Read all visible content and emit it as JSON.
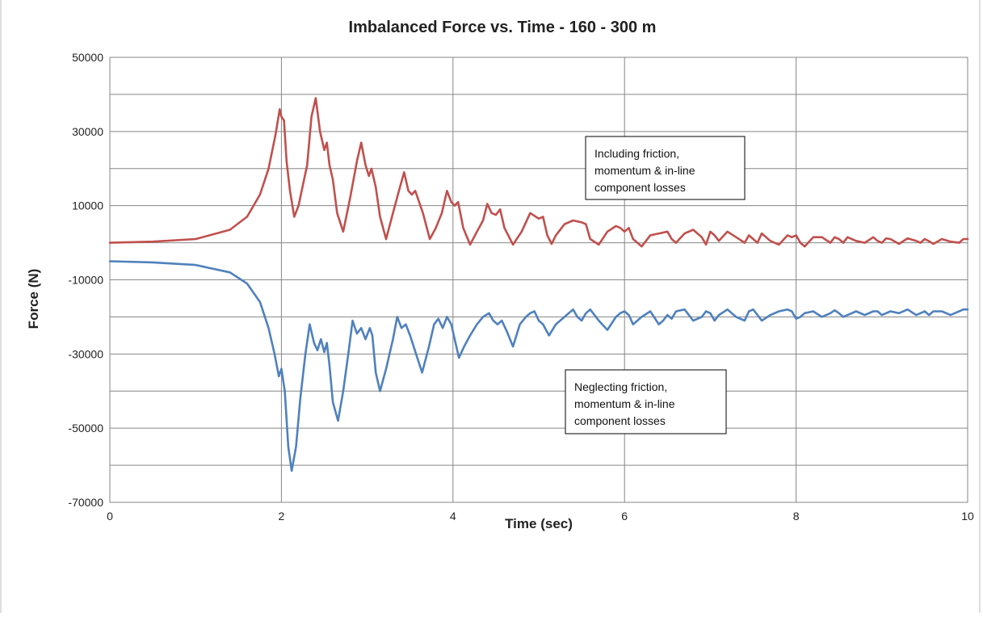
{
  "chart_data": {
    "type": "line",
    "title": "Imbalanced Force vs. Time - 160 - 300 m",
    "xlabel": "Time (sec)",
    "ylabel": "Force (N)",
    "xlim": [
      0,
      10
    ],
    "ylim": [
      -70000,
      50000
    ],
    "x_ticks": [
      "0",
      "2",
      "4",
      "6",
      "8",
      "10"
    ],
    "y_ticks": [
      "50000",
      "30000",
      "10000",
      "-10000",
      "-30000",
      "-50000",
      "-70000"
    ],
    "grid": true,
    "series": [
      {
        "name": "Including friction, momentum & in-line component losses",
        "color": "#c0504d",
        "x": [
          0,
          0.5,
          1.0,
          1.4,
          1.6,
          1.75,
          1.85,
          1.93,
          1.98,
          2.0,
          2.03,
          2.06,
          2.1,
          2.15,
          2.2,
          2.3,
          2.35,
          2.4,
          2.45,
          2.5,
          2.53,
          2.56,
          2.6,
          2.65,
          2.72,
          2.8,
          2.88,
          2.93,
          2.98,
          3.02,
          3.05,
          3.1,
          3.15,
          3.22,
          3.3,
          3.37,
          3.43,
          3.48,
          3.52,
          3.56,
          3.65,
          3.73,
          3.8,
          3.87,
          3.93,
          3.98,
          4.02,
          4.06,
          4.12,
          4.2,
          4.28,
          4.35,
          4.4,
          4.45,
          4.5,
          4.55,
          4.6,
          4.7,
          4.8,
          4.9,
          5.0,
          5.05,
          5.1,
          5.15,
          5.2,
          5.3,
          5.4,
          5.5,
          5.55,
          5.6,
          5.7,
          5.8,
          5.9,
          5.95,
          6.0,
          6.05,
          6.1,
          6.2,
          6.3,
          6.4,
          6.5,
          6.55,
          6.6,
          6.7,
          6.8,
          6.9,
          6.95,
          7.0,
          7.05,
          7.1,
          7.2,
          7.3,
          7.4,
          7.45,
          7.5,
          7.55,
          7.6,
          7.7,
          7.8,
          7.9,
          7.95,
          8.0,
          8.05,
          8.1,
          8.2,
          8.3,
          8.4,
          8.45,
          8.5,
          8.55,
          8.6,
          8.7,
          8.8,
          8.9,
          8.95,
          9.0,
          9.05,
          9.1,
          9.2,
          9.3,
          9.4,
          9.45,
          9.5,
          9.55,
          9.6,
          9.7,
          9.8,
          9.9,
          9.95,
          10.0
        ],
        "y": [
          0,
          300,
          1000,
          3500,
          7000,
          13000,
          20000,
          29000,
          36000,
          34000,
          33000,
          22000,
          14000,
          7000,
          10000,
          21000,
          34000,
          39000,
          30000,
          25000,
          27000,
          21000,
          17000,
          8000,
          3000,
          12000,
          22000,
          27000,
          21000,
          18000,
          20000,
          15000,
          7000,
          1000,
          8000,
          14000,
          19000,
          14000,
          13000,
          14000,
          8000,
          1000,
          4000,
          8000,
          14000,
          11000,
          10000,
          11000,
          4000,
          -500,
          3000,
          6000,
          10500,
          8000,
          7500,
          9000,
          4000,
          -500,
          3000,
          8000,
          6500,
          7000,
          2000,
          -300,
          2000,
          5000,
          6000,
          5500,
          5000,
          1000,
          -500,
          3000,
          4500,
          4000,
          3000,
          4000,
          1000,
          -1000,
          2000,
          2500,
          3000,
          1000,
          0,
          2500,
          3500,
          1500,
          -500,
          3000,
          2000,
          500,
          3000,
          1500,
          0,
          2000,
          1000,
          0,
          2500,
          500,
          -500,
          2000,
          1500,
          2000,
          0,
          -1000,
          1500,
          1500,
          0,
          1500,
          1000,
          0,
          1500,
          500,
          0,
          1500,
          500,
          0,
          1200,
          1000,
          -300,
          1200,
          500,
          0,
          1000,
          400,
          -300,
          1000,
          300,
          0,
          1000,
          1000
        ]
      },
      {
        "name": "Neglecting friction, momentum & in-line component losses",
        "color": "#4f81bd",
        "x": [
          0,
          0.5,
          1.0,
          1.4,
          1.6,
          1.75,
          1.85,
          1.92,
          1.97,
          2.0,
          2.04,
          2.08,
          2.12,
          2.17,
          2.22,
          2.28,
          2.33,
          2.38,
          2.42,
          2.46,
          2.5,
          2.53,
          2.56,
          2.6,
          2.66,
          2.72,
          2.78,
          2.83,
          2.88,
          2.93,
          2.98,
          3.03,
          3.06,
          3.1,
          3.15,
          3.22,
          3.3,
          3.35,
          3.4,
          3.45,
          3.5,
          3.57,
          3.64,
          3.72,
          3.78,
          3.83,
          3.88,
          3.93,
          3.98,
          4.02,
          4.07,
          4.13,
          4.2,
          4.28,
          4.35,
          4.42,
          4.47,
          4.52,
          4.57,
          4.63,
          4.7,
          4.78,
          4.85,
          4.9,
          4.95,
          5.0,
          5.05,
          5.12,
          5.2,
          5.3,
          5.4,
          5.45,
          5.5,
          5.55,
          5.6,
          5.7,
          5.8,
          5.9,
          5.95,
          6.0,
          6.05,
          6.1,
          6.2,
          6.3,
          6.4,
          6.45,
          6.5,
          6.55,
          6.6,
          6.7,
          6.8,
          6.9,
          6.95,
          7.0,
          7.05,
          7.1,
          7.2,
          7.3,
          7.4,
          7.45,
          7.5,
          7.55,
          7.6,
          7.7,
          7.8,
          7.9,
          7.95,
          8.0,
          8.05,
          8.1,
          8.2,
          8.3,
          8.4,
          8.45,
          8.5,
          8.55,
          8.6,
          8.7,
          8.8,
          8.9,
          8.95,
          9.0,
          9.05,
          9.1,
          9.2,
          9.3,
          9.4,
          9.45,
          9.5,
          9.55,
          9.6,
          9.7,
          9.8,
          9.9,
          9.95,
          10.0
        ],
        "y": [
          -5000,
          -5300,
          -6000,
          -8000,
          -11000,
          -16000,
          -23000,
          -30000,
          -36000,
          -34000,
          -40000,
          -55000,
          -61500,
          -55000,
          -42000,
          -30000,
          -22000,
          -27000,
          -29000,
          -26000,
          -29500,
          -27000,
          -33000,
          -43000,
          -48000,
          -40000,
          -30000,
          -21000,
          -24500,
          -23000,
          -26000,
          -23000,
          -25000,
          -35000,
          -40000,
          -34000,
          -26000,
          -20000,
          -23000,
          -22000,
          -25000,
          -30000,
          -35000,
          -28000,
          -22000,
          -20500,
          -23000,
          -20000,
          -22000,
          -26000,
          -31000,
          -28000,
          -25000,
          -22000,
          -20000,
          -19000,
          -21000,
          -22000,
          -21000,
          -24000,
          -28000,
          -22000,
          -20000,
          -19000,
          -18500,
          -21000,
          -22000,
          -25000,
          -22000,
          -20000,
          -18000,
          -20000,
          -21000,
          -19000,
          -18000,
          -21000,
          -23500,
          -20000,
          -19000,
          -18500,
          -19500,
          -22000,
          -20000,
          -18500,
          -22000,
          -21000,
          -19500,
          -20500,
          -18500,
          -18000,
          -21000,
          -20000,
          -18500,
          -19000,
          -21000,
          -19500,
          -18000,
          -20000,
          -21000,
          -18500,
          -18000,
          -19500,
          -21000,
          -19500,
          -18500,
          -18000,
          -18500,
          -20500,
          -20000,
          -19000,
          -18500,
          -20000,
          -19000,
          -18200,
          -19000,
          -20000,
          -19500,
          -18500,
          -19500,
          -18500,
          -18500,
          -19500,
          -19000,
          -18500,
          -19000,
          -18000,
          -19500,
          -19000,
          -18500,
          -19500,
          -18500,
          -18500,
          -19500,
          -18500,
          -18000,
          -18000
        ]
      }
    ],
    "annotations": [
      {
        "lines": [
          "Including friction,",
          "momentum & in-line",
          "component losses"
        ]
      },
      {
        "lines": [
          "Neglecting friction,",
          "momentum & in-line",
          "component losses"
        ]
      }
    ]
  }
}
